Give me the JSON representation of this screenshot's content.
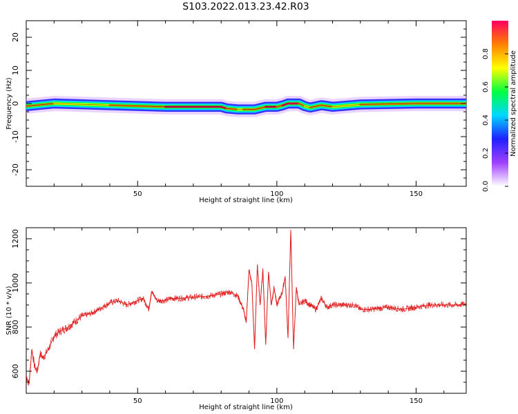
{
  "title": "S103.2022.013.23.42.R03",
  "chart_data": [
    {
      "type": "heatmap",
      "xlabel": "Height of straight line (km)",
      "ylabel": "Frequency (Hz)",
      "xlim": [
        10,
        168
      ],
      "ylim": [
        -25,
        25
      ],
      "xticks": [
        50,
        100,
        150
      ],
      "yticks": [
        -20,
        -10,
        0,
        10,
        20
      ],
      "colorbar": {
        "label": "Normalized spectral amplitude",
        "range": [
          0.0,
          1.0
        ],
        "ticks": [
          0.0,
          0.2,
          0.4,
          0.6,
          0.8
        ],
        "colors": [
          "#ffffff",
          "#a040ff",
          "#2020ff",
          "#00d8ff",
          "#00ff40",
          "#ffff00",
          "#ff8000",
          "#ff0060"
        ]
      },
      "ridge": {
        "x": [
          10,
          20,
          40,
          60,
          80,
          82,
          86,
          88,
          90,
          92,
          96,
          100,
          102,
          104,
          108,
          110,
          112,
          116,
          120,
          130,
          150,
          168
        ],
        "frequency": [
          -0.8,
          0,
          -0.5,
          -1,
          -1,
          -1.5,
          -1.8,
          -1.8,
          -1.8,
          -1.8,
          -1,
          -1,
          -0.6,
          0,
          0,
          -0.8,
          -1.2,
          -0.5,
          -1,
          -0.3,
          0,
          0
        ],
        "amplitude": [
          0.8,
          0.85,
          0.7,
          1.0,
          1.0,
          0.9,
          0.8,
          0.7,
          0.9,
          0.75,
          0.95,
          0.9,
          0.85,
          0.95,
          0.9,
          0.7,
          0.85,
          0.9,
          0.8,
          0.75,
          0.85,
          0.9
        ],
        "colors": {
          "core": "#ff0050",
          "mid": "#00ff40",
          "outer": "#00d8ff",
          "halo": "#2020ff",
          "fringe": "#d8b0ff"
        }
      }
    },
    {
      "type": "line",
      "xlabel": "Height of straight line (km)",
      "ylabel": "SNR (10 * v/v)",
      "xlim": [
        10,
        168
      ],
      "ylim": [
        500,
        1250
      ],
      "xticks": [
        50,
        100,
        150
      ],
      "yticks": [
        600,
        800,
        1000,
        1200
      ],
      "series": [
        {
          "color": "#e02020",
          "x": [
            10,
            11,
            12,
            13,
            14,
            15,
            16,
            18,
            20,
            22,
            25,
            28,
            30,
            33,
            36,
            40,
            43,
            46,
            50,
            52,
            54,
            55,
            57,
            60,
            62,
            65,
            70,
            75,
            80,
            83,
            86,
            88,
            89,
            90,
            91,
            92,
            93,
            94,
            95,
            96,
            97,
            98,
            99,
            100,
            102,
            103,
            104,
            105,
            106,
            107,
            108,
            110,
            112,
            114,
            116,
            118,
            120,
            124,
            128,
            130,
            134,
            140,
            145,
            150,
            155,
            160,
            165,
            168
          ],
          "y": [
            580,
            540,
            700,
            620,
            600,
            680,
            660,
            700,
            760,
            780,
            800,
            830,
            850,
            860,
            880,
            910,
            920,
            900,
            920,
            930,
            880,
            960,
            920,
            920,
            930,
            930,
            935,
            940,
            950,
            960,
            940,
            880,
            820,
            1060,
            1000,
            700,
            1080,
            900,
            1060,
            720,
            1050,
            900,
            980,
            900,
            960,
            1030,
            750,
            1240,
            700,
            980,
            900,
            920,
            900,
            880,
            930,
            890,
            900,
            900,
            900,
            880,
            880,
            890,
            880,
            890,
            900,
            900,
            900,
            905
          ]
        }
      ]
    }
  ]
}
